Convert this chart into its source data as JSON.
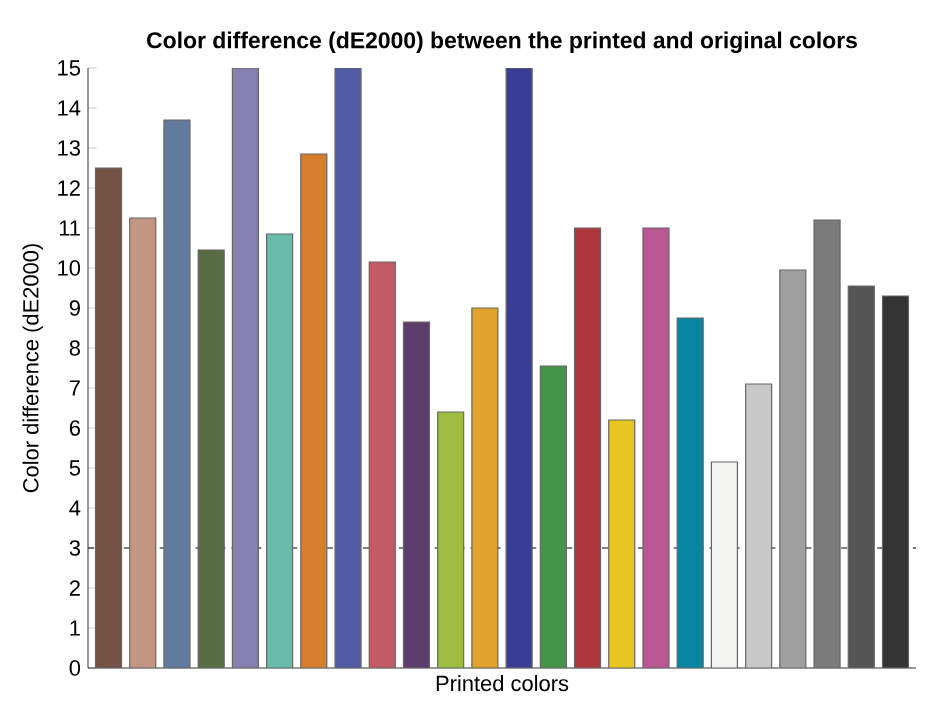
{
  "chart_data": {
    "type": "bar",
    "title": "Color difference (dE2000) between the printed and original colors",
    "xlabel": "Printed colors",
    "ylabel": "Color difference (dE2000)",
    "categories": [
      null,
      null,
      null,
      null,
      null,
      null,
      null,
      null,
      null,
      null,
      null,
      null,
      null,
      null,
      null,
      null,
      null,
      null,
      null,
      null,
      null,
      null,
      null,
      null
    ],
    "values": [
      12.5,
      11.25,
      13.7,
      10.45,
      15,
      10.85,
      12.85,
      15,
      10.15,
      8.65,
      6.4,
      9.0,
      15,
      7.55,
      11.0,
      6.2,
      11.0,
      8.75,
      5.15,
      7.1,
      9.95,
      11.2,
      9.55,
      9.3
    ],
    "colors": [
      "#735244",
      "#c29682",
      "#627a9d",
      "#576c43",
      "#8580b1",
      "#67bdaa",
      "#d67e2c",
      "#505ba6",
      "#c15a63",
      "#5e3c6c",
      "#9dbc40",
      "#e0a32e",
      "#383d96",
      "#469449",
      "#af363c",
      "#e7c71f",
      "#bb5695",
      "#0885a1",
      "#f3f3f2",
      "#c8c8c8",
      "#a0a0a0",
      "#7a7a7a",
      "#555555",
      "#343434"
    ],
    "ylim": [
      0,
      15
    ],
    "yticks": [
      0,
      1,
      2,
      3,
      4,
      5,
      6,
      7,
      8,
      9,
      10,
      11,
      12,
      13,
      14,
      15
    ],
    "ref_lines": [
      {
        "axis": "y",
        "value": 3,
        "color": "#000000",
        "line_style": "dashed"
      }
    ],
    "tick_labels": "y",
    "grid": false
  }
}
